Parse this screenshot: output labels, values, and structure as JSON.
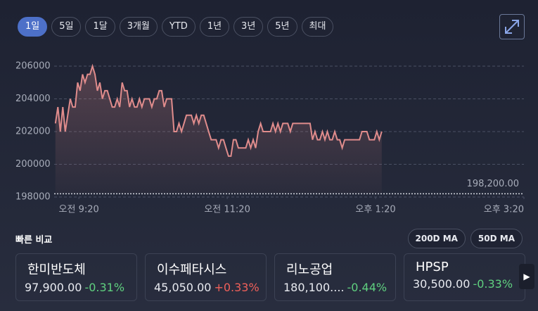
{
  "range_buttons": [
    "1일",
    "5일",
    "1달",
    "3개월",
    "YTD",
    "1년",
    "3년",
    "5년",
    "최대"
  ],
  "selected_range": 0,
  "chart_data": {
    "type": "line",
    "color": "#e08c8c",
    "x": [
      541,
      543,
      545,
      547,
      549,
      551,
      553,
      555,
      557,
      559,
      561,
      563,
      565,
      567,
      569,
      571,
      573,
      575,
      577,
      579,
      581,
      583,
      585,
      587,
      589,
      591,
      593,
      595,
      597,
      599,
      601,
      603,
      605,
      607,
      609,
      611,
      613,
      615,
      617,
      619,
      621,
      623,
      625,
      627,
      629,
      631,
      633,
      635,
      637,
      639,
      641,
      643,
      645,
      647,
      649,
      651,
      653,
      655,
      657,
      659,
      661,
      663,
      665,
      667,
      669,
      671,
      673,
      675,
      677,
      679,
      681,
      683,
      685,
      687,
      689,
      691,
      693,
      695,
      697,
      699,
      701,
      703,
      705,
      707,
      709,
      711,
      713,
      715,
      717,
      719,
      721,
      723,
      725,
      727,
      729,
      731,
      733,
      735,
      737,
      739,
      741,
      743,
      745,
      747,
      749,
      751,
      753,
      755,
      757,
      759,
      761,
      763,
      765,
      767,
      769,
      771,
      773,
      775,
      777,
      779,
      781,
      783,
      785,
      787,
      789,
      791,
      793,
      795,
      797,
      799,
      801,
      803,
      805
    ],
    "values": [
      202500,
      203500,
      202000,
      203500,
      202000,
      203000,
      204000,
      203500,
      203500,
      205000,
      204500,
      205500,
      205000,
      205500,
      205500,
      206000,
      205500,
      204500,
      205000,
      204000,
      204500,
      204500,
      204000,
      203500,
      203500,
      204000,
      203500,
      205000,
      204500,
      204500,
      203500,
      204000,
      203500,
      203500,
      204000,
      203500,
      204000,
      204000,
      204000,
      203500,
      204000,
      204000,
      204500,
      204500,
      203500,
      204000,
      204000,
      204000,
      202000,
      202000,
      202500,
      202000,
      202500,
      203000,
      203000,
      203000,
      202500,
      203000,
      202500,
      203000,
      203000,
      202500,
      202000,
      201500,
      201500,
      201500,
      201000,
      201500,
      201500,
      201000,
      200500,
      200500,
      201500,
      201500,
      201000,
      201000,
      201000,
      201000,
      201500,
      201000,
      201500,
      201000,
      202000,
      202500,
      202000,
      202000,
      202000,
      202000,
      202500,
      202000,
      202500,
      202000,
      202500,
      202500,
      202500,
      202000,
      202500,
      202500,
      202500,
      202500,
      202500,
      202500,
      202500,
      202500,
      201500,
      202000,
      201500,
      201500,
      202000,
      201500,
      202000,
      201500,
      201500,
      202000,
      201500,
      201500,
      201000,
      201500,
      201500,
      201500,
      201500,
      201500,
      201500,
      201500,
      202000,
      202000,
      202000,
      201500,
      201500,
      201500,
      202000,
      201500,
      202000
    ],
    "xlim": [
      540,
      920
    ],
    "xticks": [
      {
        "value": 560,
        "label": "오전 9:20"
      },
      {
        "value": 680,
        "label": "오전 11:20"
      },
      {
        "value": 800,
        "label": "오후 1:20"
      },
      {
        "value": 920,
        "label": "오후 3:20"
      }
    ],
    "ylim": [
      198000,
      206500
    ],
    "yticks": [
      198000,
      200000,
      202000,
      204000,
      206000
    ],
    "grid": true,
    "reference_line": {
      "value": 198200,
      "label": "198,200.00"
    }
  },
  "compare": {
    "title": "빠른 비교",
    "buttons": [
      "200D MA",
      "50D MA"
    ],
    "cards": [
      {
        "name": "한미반도체",
        "price": "97,900.00",
        "change": "-0.31%",
        "change_color": "#5fd07f"
      },
      {
        "name": "이수페타시스",
        "price": "45,050.00",
        "change": "+0.33%",
        "change_color": "#f0605a"
      },
      {
        "name": "리노공업",
        "price": "180,100....",
        "change": "-0.44%",
        "change_color": "#5fd07f"
      },
      {
        "name": "HPSP",
        "price": "30,500.00",
        "change": "-0.33%",
        "change_color": "#5fd07f"
      }
    ]
  }
}
